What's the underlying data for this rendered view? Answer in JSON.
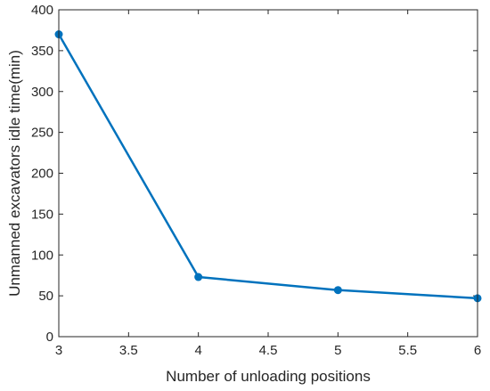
{
  "chart_data": {
    "type": "line",
    "title": "",
    "xlabel": "Number of unloading positions",
    "ylabel": "Unmanned excavators idle time(min)",
    "xlim": [
      3,
      6
    ],
    "ylim": [
      0,
      400
    ],
    "x_ticks": [
      "3",
      "3.5",
      "4",
      "4.5",
      "5",
      "5.5",
      "6"
    ],
    "y_ticks": [
      "0",
      "50",
      "100",
      "150",
      "200",
      "250",
      "300",
      "350",
      "400"
    ],
    "grid": false,
    "legend": "none",
    "series": [
      {
        "x": [
          3,
          4,
          5,
          6
        ],
        "values": [
          370,
          73,
          57,
          47
        ],
        "color": "#0072BD",
        "marker": "circle"
      }
    ]
  }
}
